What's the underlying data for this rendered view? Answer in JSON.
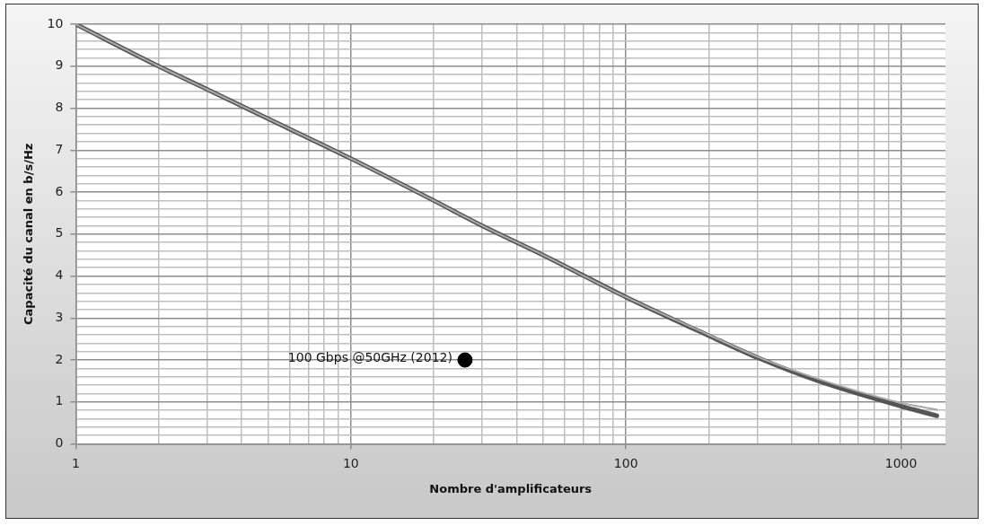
{
  "chart_data": {
    "type": "line",
    "xlabel": "Nombre d'amplificateurs",
    "ylabel": "Capacité du canal en b/s/Hz",
    "log": "x",
    "xlim": [
      1,
      1450
    ],
    "ylim": [
      0,
      10
    ],
    "xticks": [
      1,
      {
        "value": 2,
        "label": null
      },
      {
        "value": 3,
        "label": null
      },
      {
        "value": 4,
        "label": null
      },
      {
        "value": 5,
        "label": null
      },
      {
        "value": 6,
        "label": null
      },
      {
        "value": 7,
        "label": null
      },
      {
        "value": 8,
        "label": null
      },
      {
        "value": 9,
        "label": null
      },
      10,
      {
        "value": 20,
        "label": null
      },
      {
        "value": 30,
        "label": null
      },
      {
        "value": 40,
        "label": null
      },
      {
        "value": 50,
        "label": null
      },
      {
        "value": 60,
        "label": null
      },
      {
        "value": 70,
        "label": null
      },
      {
        "value": 80,
        "label": null
      },
      {
        "value": 90,
        "label": null
      },
      100,
      {
        "value": 200,
        "label": null
      },
      {
        "value": 300,
        "label": null
      },
      {
        "value": 400,
        "label": null
      },
      {
        "value": 500,
        "label": null
      },
      {
        "value": 600,
        "label": null
      },
      {
        "value": 700,
        "label": null
      },
      {
        "value": 800,
        "label": null
      },
      {
        "value": 900,
        "label": null
      },
      1000
    ],
    "yticks": [
      0,
      {
        "value": 0.2,
        "label": null
      },
      {
        "value": 0.4,
        "label": null
      },
      {
        "value": 0.6,
        "label": null
      },
      {
        "value": 0.8,
        "label": null
      },
      1,
      {
        "value": 1.2,
        "label": null
      },
      {
        "value": 1.4,
        "label": null
      },
      {
        "value": 1.6,
        "label": null
      },
      {
        "value": 1.8,
        "label": null
      },
      2,
      {
        "value": 2.2,
        "label": null
      },
      {
        "value": 2.4,
        "label": null
      },
      {
        "value": 2.6,
        "label": null
      },
      {
        "value": 2.8,
        "label": null
      },
      3,
      {
        "value": 3.2,
        "label": null
      },
      {
        "value": 3.4,
        "label": null
      },
      {
        "value": 3.6,
        "label": null
      },
      {
        "value": 3.8,
        "label": null
      },
      4,
      {
        "value": 4.2,
        "label": null
      },
      {
        "value": 4.4,
        "label": null
      },
      {
        "value": 4.6,
        "label": null
      },
      {
        "value": 4.8,
        "label": null
      },
      5,
      {
        "value": 5.2,
        "label": null
      },
      {
        "value": 5.4,
        "label": null
      },
      {
        "value": 5.6,
        "label": null
      },
      {
        "value": 5.8,
        "label": null
      },
      6,
      {
        "value": 6.2,
        "label": null
      },
      {
        "value": 6.4,
        "label": null
      },
      {
        "value": 6.6,
        "label": null
      },
      {
        "value": 6.8,
        "label": null
      },
      7,
      {
        "value": 7.2,
        "label": null
      },
      {
        "value": 7.4,
        "label": null
      },
      {
        "value": 7.6,
        "label": null
      },
      {
        "value": 7.8,
        "label": null
      },
      8,
      {
        "value": 8.2,
        "label": null
      },
      {
        "value": 8.4,
        "label": null
      },
      {
        "value": 8.6,
        "label": null
      },
      {
        "value": 8.8,
        "label": null
      },
      9,
      {
        "value": 9.2,
        "label": null
      },
      {
        "value": 9.4,
        "label": null
      },
      {
        "value": 9.6,
        "label": null
      },
      {
        "value": 9.8,
        "label": null
      },
      10
    ],
    "grid": true,
    "legend": false,
    "marker": "none",
    "series": [
      {
        "color": "#aaaaaa",
        "x": [
          1,
          2,
          3,
          5,
          10,
          20,
          30,
          50,
          100,
          200,
          300,
          500,
          1000,
          1350
        ],
        "values": [
          10,
          9.0,
          8.45,
          7.75,
          6.8,
          5.8,
          5.2,
          4.5,
          3.5,
          2.6,
          2.08,
          1.55,
          0.98,
          0.82
        ]
      },
      {
        "color": "#555555",
        "x": [
          1,
          2,
          3,
          5,
          10,
          20,
          30,
          50,
          100,
          200,
          300,
          500,
          1000,
          1350
        ],
        "values": [
          10,
          9.0,
          8.45,
          7.75,
          6.8,
          5.8,
          5.2,
          4.5,
          3.5,
          2.58,
          2.06,
          1.5,
          0.9,
          0.67
        ]
      },
      {
        "type": "scatter",
        "marker": "circle",
        "color": "#000000",
        "x": [
          26
        ],
        "values": [
          2
        ]
      }
    ],
    "annotations": [
      {
        "text": "100 Gbps @50GHz (2012)",
        "x": 26,
        "y": 2
      }
    ]
  }
}
